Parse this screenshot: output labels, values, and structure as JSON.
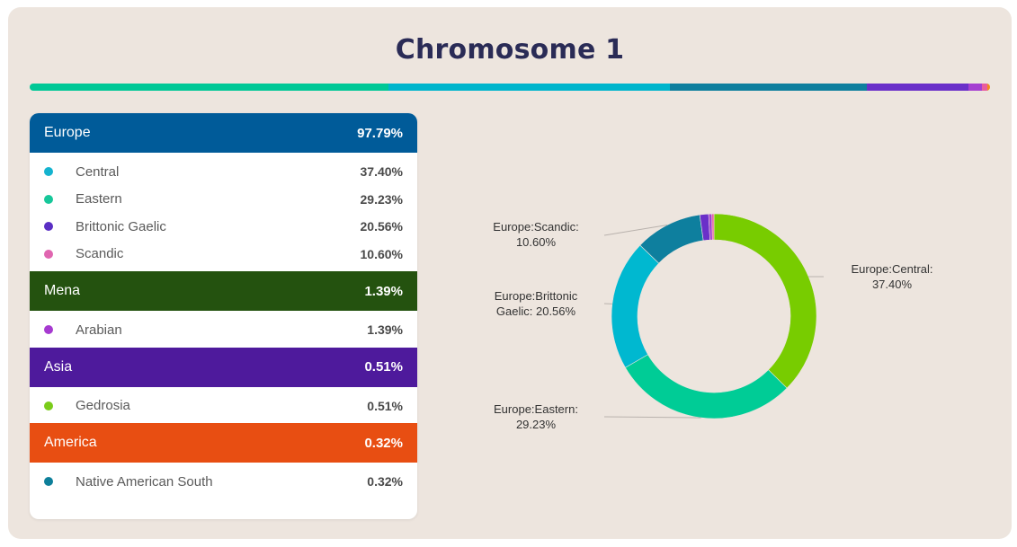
{
  "title": "Chromosome 1",
  "topbar": [
    {
      "color": "#00c896",
      "percent": 37.4
    },
    {
      "color": "#00b5cc",
      "percent": 29.23
    },
    {
      "color": "#0e7f9e",
      "percent": 20.56
    },
    {
      "color": "#6a2fc9",
      "percent": 10.6
    },
    {
      "color": "#a53fd1",
      "percent": 1.39
    },
    {
      "color": "#e85d9e",
      "percent": 0.51
    },
    {
      "color": "#f28a1e",
      "percent": 0.32
    }
  ],
  "groups": [
    {
      "name": "Europe",
      "pct": "97.79%",
      "color": "#005b99",
      "items": [
        {
          "name": "Central",
          "pct": "37.40%",
          "dot": "#14b3cf"
        },
        {
          "name": "Eastern",
          "pct": "29.23%",
          "dot": "#17c79a"
        },
        {
          "name": "Brittonic Gaelic",
          "pct": "20.56%",
          "dot": "#5a2fc4"
        },
        {
          "name": "Scandic",
          "pct": "10.60%",
          "dot": "#e066b0"
        }
      ]
    },
    {
      "name": "Mena",
      "pct": "1.39%",
      "color": "#24520f",
      "items": [
        {
          "name": "Arabian",
          "pct": "1.39%",
          "dot": "#a63ad0"
        }
      ]
    },
    {
      "name": "Asia",
      "pct": "0.51%",
      "color": "#4e1a9c",
      "items": [
        {
          "name": "Gedrosia",
          "pct": "0.51%",
          "dot": "#7acc1a"
        }
      ]
    },
    {
      "name": "America",
      "pct": "0.32%",
      "color": "#e84e12",
      "items": [
        {
          "name": "Native American South",
          "pct": "0.32%",
          "dot": "#0d7f9a"
        }
      ]
    }
  ],
  "chart_data": {
    "type": "pie",
    "labels": [
      "Europe:Central",
      "Europe:Eastern",
      "Europe:Brittonic Gaelic",
      "Europe:Scandic",
      "Mena:Arabian",
      "Asia:Gedrosia",
      "America:Native American South"
    ],
    "values": [
      37.4,
      29.23,
      20.56,
      10.6,
      1.39,
      0.51,
      0.32
    ],
    "colors": [
      "#78cc00",
      "#00cc96",
      "#00b8d0",
      "#0e7f9e",
      "#6a2fc9",
      "#a53fd1",
      "#e85d9e"
    ],
    "callouts": [
      {
        "index": 0,
        "lines": [
          "Europe:Central:",
          "37.40%"
        ]
      },
      {
        "index": 1,
        "lines": [
          "Europe:Eastern:",
          "29.23%"
        ]
      },
      {
        "index": 2,
        "lines": [
          "Europe:Brittonic",
          "Gaelic: 20.56%"
        ]
      },
      {
        "index": 3,
        "lines": [
          "Europe:Scandic:",
          "10.60%"
        ]
      }
    ]
  }
}
